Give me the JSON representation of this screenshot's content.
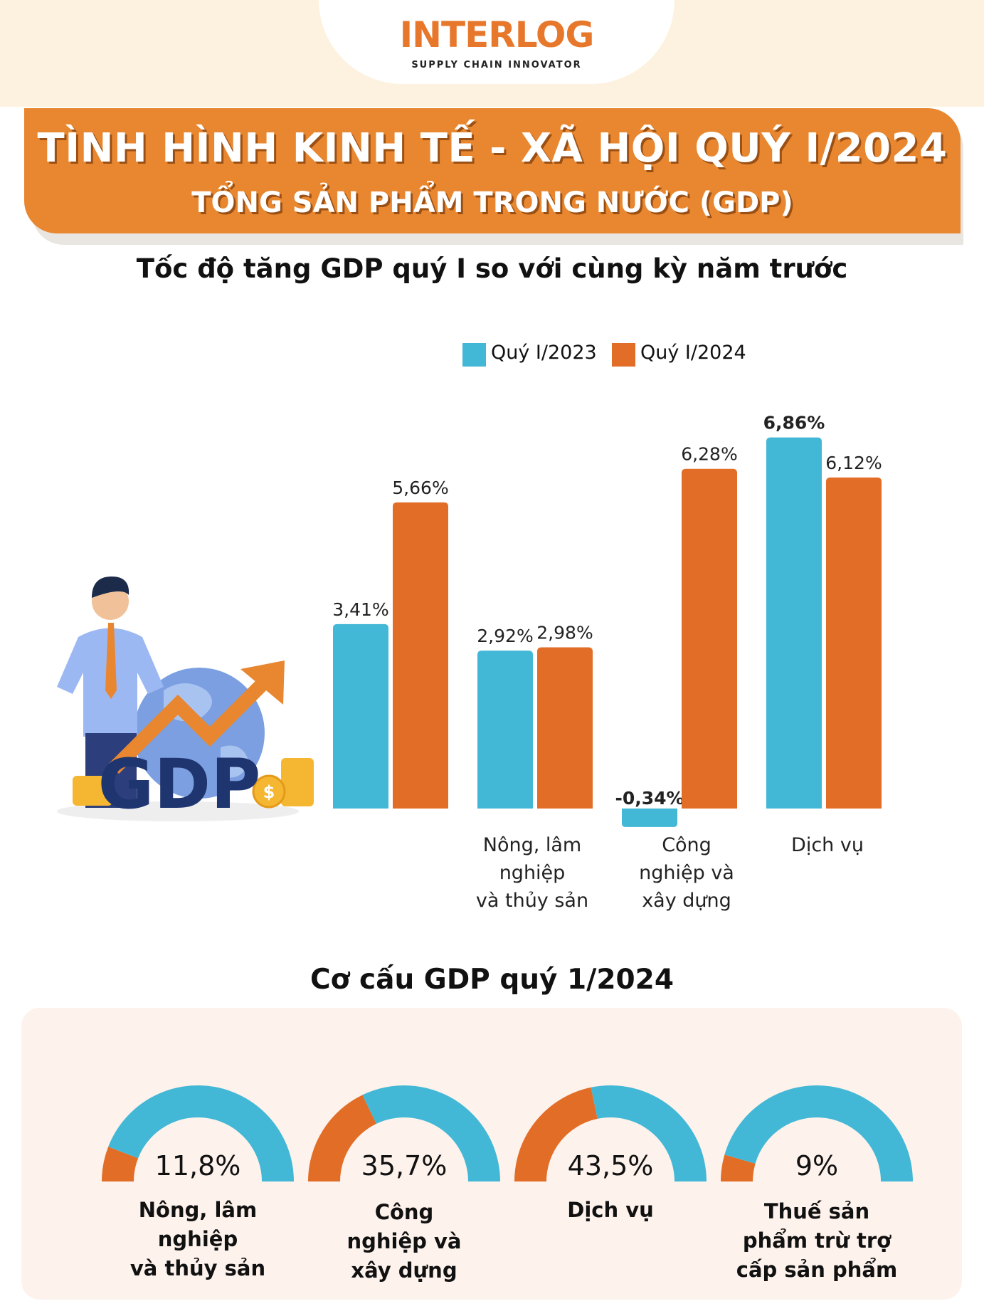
{
  "logo": {
    "name": "INTERLOG",
    "tagline": "SUPPLY CHAIN INNOVATOR"
  },
  "header": {
    "title": "TÌNH HÌNH KINH TẾ - XÃ HỘI QUÝ I/2024",
    "subtitle": "TỔNG SẢN PHẨM TRONG NƯỚC (GDP)"
  },
  "colors": {
    "q2023": "#42b8d6",
    "q2024": "#e26d27",
    "accent": "#e8872f"
  },
  "illustration": {
    "text": "GDP"
  },
  "chart_data": [
    {
      "type": "bar",
      "title": "Tốc độ tăng GDP quý I so với cùng kỳ năm trước",
      "categories": [
        "",
        "Nông, lâm nghiệp và thủy sản",
        "Công nghiệp và xây dựng",
        "Dịch vụ"
      ],
      "category_lines": [
        [],
        [
          "Nông, lâm",
          "nghiệp",
          "và thủy sản"
        ],
        [
          "Công",
          "nghiệp và",
          "xây dựng"
        ],
        [
          "Dịch vụ"
        ]
      ],
      "series": [
        {
          "name": "Quý I/2023",
          "values": [
            3.41,
            2.92,
            -0.34,
            6.86
          ],
          "labels": [
            "3,41%",
            "2,92%",
            "-0,34%",
            "6,86%"
          ]
        },
        {
          "name": "Quý I/2024",
          "values": [
            5.66,
            2.98,
            6.28,
            6.12
          ],
          "labels": [
            "5,66%",
            "2,98%",
            "6,28%",
            "6,12%"
          ]
        }
      ],
      "legend_position": "top",
      "grid": false
    },
    {
      "type": "pie",
      "title": "Cơ cấu GDP quý 1/2024",
      "items": [
        {
          "label": "Nông, lâm nghiệp và thủy sản",
          "lines": [
            "Nông, lâm",
            "nghiệp",
            "và thủy sản"
          ],
          "value": 11.8,
          "display": "11,8%"
        },
        {
          "label": "Công nghiệp và xây dựng",
          "lines": [
            "Công",
            "nghiệp và",
            "xây dựng"
          ],
          "value": 35.7,
          "display": "35,7%"
        },
        {
          "label": "Dịch vụ",
          "lines": [
            "Dịch vụ"
          ],
          "value": 43.5,
          "display": "43,5%"
        },
        {
          "label": "Thuế sản phẩm trừ trợ cấp sản phẩm",
          "lines": [
            "Thuế sản",
            "phẩm trừ trợ",
            "cấp sản phẩm"
          ],
          "value": 9,
          "display": "9%"
        }
      ]
    }
  ]
}
